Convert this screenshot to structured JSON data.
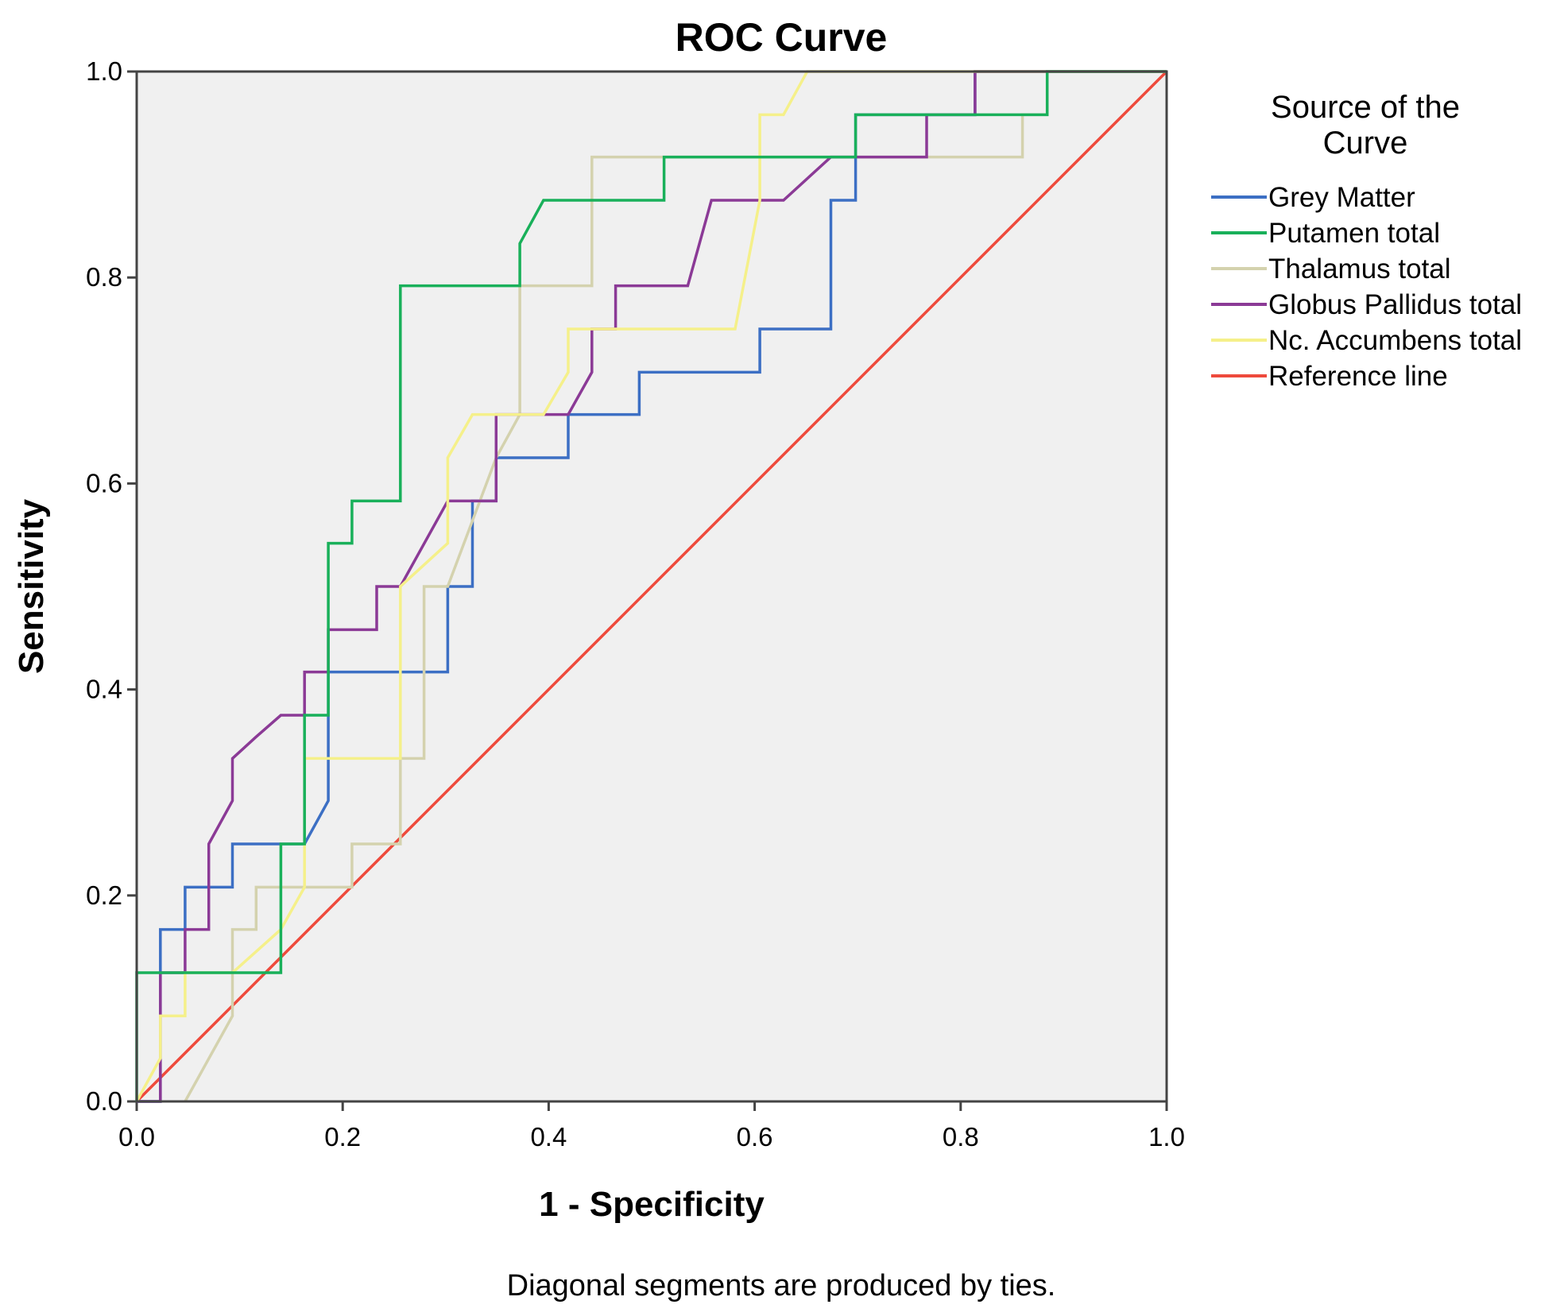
{
  "chart_data": {
    "type": "line",
    "title": "ROC Curve",
    "xlabel": "1 - Specificity",
    "ylabel": "Sensitivity",
    "xlim": [
      0,
      1
    ],
    "ylim": [
      0,
      1
    ],
    "xticks": [
      "0.0",
      "0.2",
      "0.4",
      "0.6",
      "0.8",
      "1.0"
    ],
    "yticks": [
      "0.0",
      "0.2",
      "0.4",
      "0.6",
      "0.8",
      "1.0"
    ],
    "legend_title": "Source of the Curve",
    "legend_title_lines": [
      "Source of the",
      "Curve"
    ],
    "footnote": "Diagonal segments are produced by ties.",
    "plot_background": "#f0f0f0",
    "series": [
      {
        "name": "Grey Matter",
        "color": "#3c6fc4",
        "points": [
          [
            0,
            0
          ],
          [
            0.023,
            0
          ],
          [
            0.023,
            0.167
          ],
          [
            0.047,
            0.167
          ],
          [
            0.047,
            0.208
          ],
          [
            0.093,
            0.208
          ],
          [
            0.093,
            0.25
          ],
          [
            0.163,
            0.25
          ],
          [
            0.186,
            0.292
          ],
          [
            0.186,
            0.417
          ],
          [
            0.302,
            0.417
          ],
          [
            0.302,
            0.5
          ],
          [
            0.326,
            0.5
          ],
          [
            0.326,
            0.583
          ],
          [
            0.349,
            0.583
          ],
          [
            0.349,
            0.625
          ],
          [
            0.419,
            0.625
          ],
          [
            0.419,
            0.667
          ],
          [
            0.488,
            0.667
          ],
          [
            0.488,
            0.708
          ],
          [
            0.605,
            0.708
          ],
          [
            0.605,
            0.75
          ],
          [
            0.674,
            0.75
          ],
          [
            0.674,
            0.875
          ],
          [
            0.698,
            0.875
          ],
          [
            0.698,
            0.958
          ],
          [
            0.814,
            0.958
          ],
          [
            0.814,
            1
          ],
          [
            1,
            1
          ]
        ]
      },
      {
        "name": "Putamen total",
        "color": "#19b05a",
        "points": [
          [
            0,
            0
          ],
          [
            0,
            0.125
          ],
          [
            0.14,
            0.125
          ],
          [
            0.14,
            0.25
          ],
          [
            0.163,
            0.25
          ],
          [
            0.163,
            0.375
          ],
          [
            0.186,
            0.375
          ],
          [
            0.186,
            0.542
          ],
          [
            0.209,
            0.542
          ],
          [
            0.209,
            0.583
          ],
          [
            0.256,
            0.583
          ],
          [
            0.256,
            0.792
          ],
          [
            0.372,
            0.792
          ],
          [
            0.372,
            0.833
          ],
          [
            0.395,
            0.875
          ],
          [
            0.512,
            0.875
          ],
          [
            0.512,
            0.917
          ],
          [
            0.698,
            0.917
          ],
          [
            0.698,
            0.958
          ],
          [
            0.884,
            0.958
          ],
          [
            0.884,
            1
          ],
          [
            1,
            1
          ]
        ]
      },
      {
        "name": "Thalamus total",
        "color": "#d4d2ae",
        "points": [
          [
            0.047,
            0
          ],
          [
            0.093,
            0.083
          ],
          [
            0.093,
            0.167
          ],
          [
            0.116,
            0.167
          ],
          [
            0.116,
            0.208
          ],
          [
            0.209,
            0.208
          ],
          [
            0.209,
            0.25
          ],
          [
            0.256,
            0.25
          ],
          [
            0.256,
            0.333
          ],
          [
            0.279,
            0.333
          ],
          [
            0.279,
            0.5
          ],
          [
            0.302,
            0.5
          ],
          [
            0.349,
            0.625
          ],
          [
            0.372,
            0.667
          ],
          [
            0.372,
            0.792
          ],
          [
            0.442,
            0.792
          ],
          [
            0.442,
            0.917
          ],
          [
            0.86,
            0.917
          ],
          [
            0.86,
            0.958
          ],
          [
            0.884,
            0.958
          ],
          [
            0.884,
            1
          ],
          [
            1,
            1
          ]
        ]
      },
      {
        "name": "Globus Pallidus total",
        "color": "#8b3a96",
        "points": [
          [
            0,
            0
          ],
          [
            0.023,
            0
          ],
          [
            0.023,
            0.125
          ],
          [
            0.047,
            0.125
          ],
          [
            0.047,
            0.167
          ],
          [
            0.07,
            0.167
          ],
          [
            0.07,
            0.25
          ],
          [
            0.093,
            0.292
          ],
          [
            0.093,
            0.333
          ],
          [
            0.116,
            0.354
          ],
          [
            0.14,
            0.375
          ],
          [
            0.163,
            0.375
          ],
          [
            0.163,
            0.417
          ],
          [
            0.186,
            0.417
          ],
          [
            0.186,
            0.458
          ],
          [
            0.233,
            0.458
          ],
          [
            0.233,
            0.5
          ],
          [
            0.256,
            0.5
          ],
          [
            0.302,
            0.583
          ],
          [
            0.349,
            0.583
          ],
          [
            0.349,
            0.667
          ],
          [
            0.419,
            0.667
          ],
          [
            0.442,
            0.708
          ],
          [
            0.442,
            0.75
          ],
          [
            0.465,
            0.75
          ],
          [
            0.465,
            0.792
          ],
          [
            0.535,
            0.792
          ],
          [
            0.558,
            0.875
          ],
          [
            0.628,
            0.875
          ],
          [
            0.674,
            0.917
          ],
          [
            0.767,
            0.917
          ],
          [
            0.767,
            0.958
          ],
          [
            0.814,
            0.958
          ],
          [
            0.814,
            1
          ],
          [
            1,
            1
          ]
        ]
      },
      {
        "name": "Nc. Accumbens total",
        "color": "#f5f08a",
        "points": [
          [
            0,
            0
          ],
          [
            0.023,
            0.042
          ],
          [
            0.023,
            0.083
          ],
          [
            0.047,
            0.083
          ],
          [
            0.047,
            0.125
          ],
          [
            0.093,
            0.125
          ],
          [
            0.14,
            0.167
          ],
          [
            0.163,
            0.208
          ],
          [
            0.163,
            0.333
          ],
          [
            0.256,
            0.333
          ],
          [
            0.256,
            0.5
          ],
          [
            0.302,
            0.542
          ],
          [
            0.302,
            0.625
          ],
          [
            0.326,
            0.667
          ],
          [
            0.395,
            0.667
          ],
          [
            0.419,
            0.708
          ],
          [
            0.419,
            0.75
          ],
          [
            0.581,
            0.75
          ],
          [
            0.605,
            0.875
          ],
          [
            0.605,
            0.958
          ],
          [
            0.628,
            0.958
          ],
          [
            0.651,
            1
          ],
          [
            1,
            1
          ]
        ]
      },
      {
        "name": "Reference line",
        "color": "#ee4a3c",
        "points": [
          [
            0,
            0
          ],
          [
            1,
            1
          ]
        ]
      }
    ]
  }
}
